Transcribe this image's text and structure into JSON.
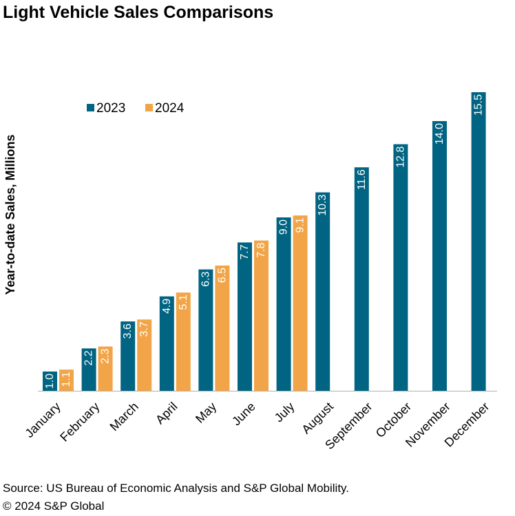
{
  "title": "Light Vehicle Sales Comparisons",
  "footer": {
    "source": "Source: US Bureau of Economic Analysis and S&P Global Mobility.",
    "copyright": "© 2024 S&P Global"
  },
  "colors": {
    "series_2023": "#006482",
    "series_2024": "#F2A548"
  },
  "chart_data": {
    "type": "bar",
    "title": "Light Vehicle Sales Comparisons",
    "xlabel": "",
    "ylabel": "Year-to-date Sales, Millions",
    "ylim": [
      0,
      16
    ],
    "grid": false,
    "legend": "top-left",
    "categories": [
      "January",
      "February",
      "March",
      "April",
      "May",
      "June",
      "July",
      "August",
      "September",
      "October",
      "November",
      "December"
    ],
    "series": [
      {
        "name": "2023",
        "values": [
          1.0,
          2.2,
          3.6,
          4.9,
          6.3,
          7.7,
          9.0,
          10.3,
          11.6,
          12.8,
          14.0,
          15.5
        ]
      },
      {
        "name": "2024",
        "values": [
          1.1,
          2.3,
          3.7,
          5.1,
          6.5,
          7.8,
          9.1,
          null,
          null,
          null,
          null,
          null
        ]
      }
    ]
  }
}
